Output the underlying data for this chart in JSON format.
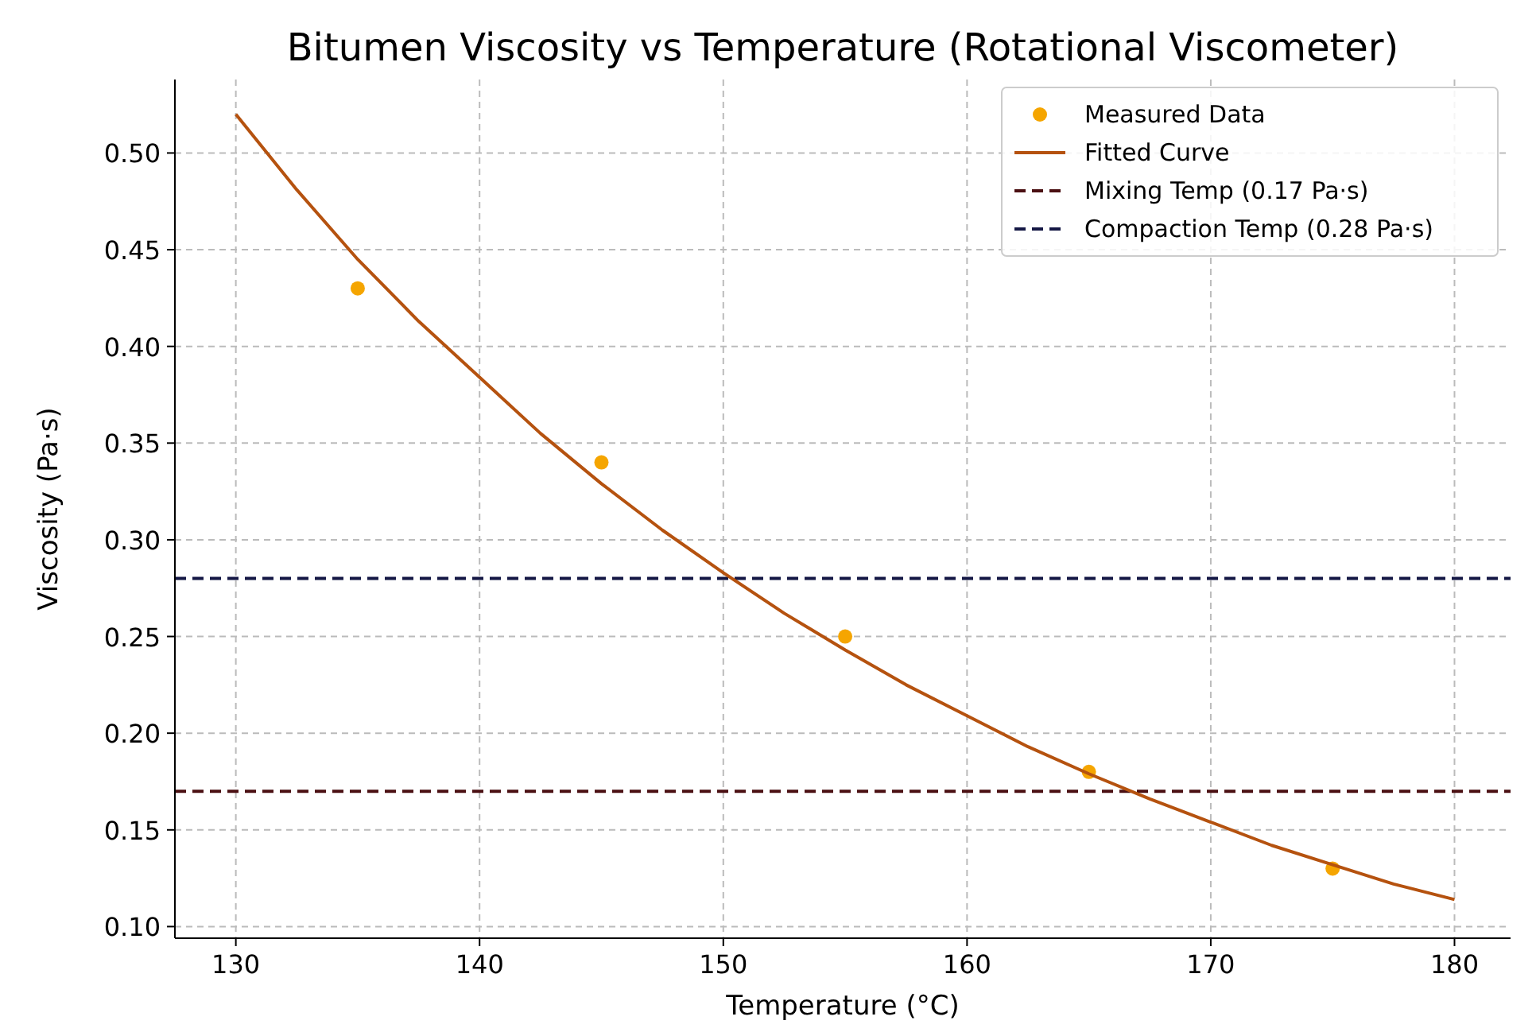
{
  "chart_data": {
    "type": "scatter",
    "title": "Bitumen Viscosity vs Temperature (Rotational Viscometer)",
    "xlabel": "Temperature (°C)",
    "ylabel": "Viscosity (Pa·s)",
    "x": [
      135,
      145,
      155,
      165,
      175
    ],
    "series": [
      {
        "name": "Measured Data",
        "color": "#f5a500",
        "marker": "circle",
        "values": [
          0.43,
          0.34,
          0.25,
          0.18,
          0.13
        ]
      },
      {
        "name": "Fitted Curve",
        "type": "line",
        "color": "#b5520f",
        "x": [
          130,
          132.5,
          135,
          137.5,
          140,
          142.5,
          145,
          147.5,
          150,
          152.5,
          155,
          157.5,
          160,
          162.5,
          165,
          167.5,
          170,
          172.5,
          175,
          177.5,
          180
        ],
        "values": [
          0.52,
          0.481,
          0.445,
          0.413,
          0.384,
          0.355,
          0.329,
          0.305,
          0.283,
          0.262,
          0.243,
          0.225,
          0.209,
          0.193,
          0.179,
          0.166,
          0.154,
          0.142,
          0.132,
          0.122,
          0.114
        ]
      }
    ],
    "ref_lines": [
      {
        "axis": "y",
        "value": 0.17,
        "label": "Mixing Temp (0.17 Pa·s)",
        "color": "#4a0f12",
        "line_style": "dashed"
      },
      {
        "axis": "y",
        "value": 0.28,
        "label": "Compaction Temp (0.28 Pa·s)",
        "color": "#141744",
        "line_style": "dashed"
      }
    ],
    "xlim": [
      127.5,
      182.3
    ],
    "xticks": [
      130,
      140,
      150,
      160,
      170,
      180
    ],
    "ylim": [
      0.094,
      0.538
    ],
    "yticks": [
      {
        "value": 0.1,
        "label": "0.10"
      },
      {
        "value": 0.15,
        "label": "0.15"
      },
      {
        "value": 0.2,
        "label": "0.20"
      },
      {
        "value": 0.25,
        "label": "0.25"
      },
      {
        "value": 0.3,
        "label": "0.30"
      },
      {
        "value": 0.35,
        "label": "0.35"
      },
      {
        "value": 0.4,
        "label": "0.40"
      },
      {
        "value": 0.45,
        "label": "0.45"
      },
      {
        "value": 0.5,
        "label": "0.50"
      }
    ],
    "grid": true,
    "legend": "top right"
  }
}
